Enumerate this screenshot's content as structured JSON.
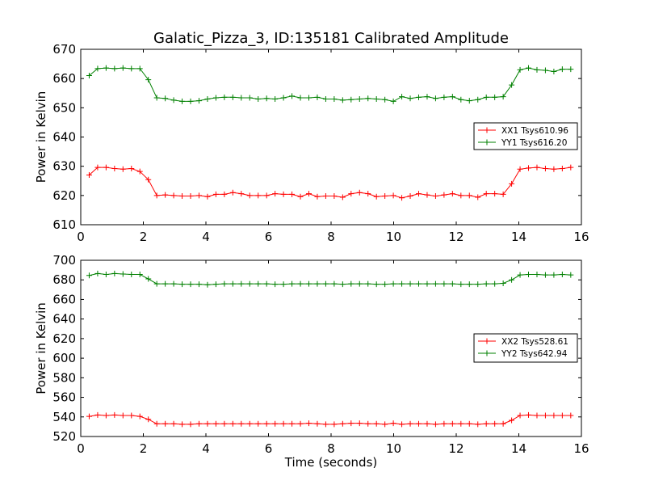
{
  "figure": {
    "title": "Galatic_Pizza_3, ID:135181 Calibrated Amplitude"
  },
  "chart_data": [
    {
      "type": "line",
      "title": "Galatic_Pizza_3, ID:135181 Calibrated Amplitude",
      "xlabel": "",
      "ylabel": "Power in Kelvin",
      "xlim": [
        0,
        16
      ],
      "ylim": [
        610,
        670
      ],
      "xticks": [
        0,
        2,
        4,
        6,
        8,
        10,
        12,
        14,
        16
      ],
      "yticks": [
        610,
        620,
        630,
        640,
        650,
        660,
        670
      ],
      "grid": false,
      "legend": "center-right",
      "x": [
        0.27,
        0.54,
        0.81,
        1.08,
        1.35,
        1.62,
        1.89,
        2.16,
        2.43,
        2.7,
        2.97,
        3.24,
        3.51,
        3.78,
        4.05,
        4.32,
        4.59,
        4.86,
        5.13,
        5.4,
        5.67,
        5.94,
        6.21,
        6.48,
        6.75,
        7.02,
        7.29,
        7.56,
        7.83,
        8.1,
        8.37,
        8.64,
        8.91,
        9.18,
        9.45,
        9.72,
        9.99,
        10.26,
        10.53,
        10.8,
        11.07,
        11.34,
        11.61,
        11.88,
        12.15,
        12.42,
        12.69,
        12.96,
        13.23,
        13.5,
        13.77,
        14.04,
        14.31,
        14.58,
        14.85,
        15.12,
        15.39,
        15.66
      ],
      "series": [
        {
          "name": "XX1 Tsys610.96",
          "color": "#ff0000",
          "values": [
            627.0,
            629.6,
            629.6,
            629.2,
            629.0,
            629.2,
            628.2,
            625.4,
            620.0,
            620.2,
            620.0,
            619.8,
            619.8,
            620.0,
            619.6,
            620.4,
            620.4,
            621.0,
            620.6,
            620.0,
            620.0,
            620.0,
            620.6,
            620.4,
            620.4,
            619.6,
            620.6,
            619.6,
            619.8,
            619.8,
            619.4,
            620.6,
            621.0,
            620.6,
            619.6,
            619.8,
            620.0,
            619.2,
            619.8,
            620.6,
            620.2,
            619.8,
            620.2,
            620.6,
            620.0,
            620.0,
            619.4,
            620.6,
            620.6,
            620.4,
            624.0,
            629.0,
            629.4,
            629.6,
            629.2,
            629.0,
            629.2,
            629.6
          ]
        },
        {
          "name": "YY1 Tsys616.20",
          "color": "#008000",
          "values": [
            661.0,
            663.4,
            663.6,
            663.4,
            663.6,
            663.4,
            663.4,
            659.6,
            653.4,
            653.2,
            652.6,
            652.2,
            652.2,
            652.4,
            653.0,
            653.4,
            653.6,
            653.6,
            653.4,
            653.4,
            653.0,
            653.2,
            653.0,
            653.4,
            654.0,
            653.4,
            653.4,
            653.6,
            653.0,
            653.0,
            652.6,
            652.8,
            653.0,
            653.2,
            653.0,
            652.8,
            652.2,
            653.8,
            653.2,
            653.6,
            653.8,
            653.2,
            653.6,
            653.8,
            652.8,
            652.4,
            652.8,
            653.6,
            653.6,
            653.8,
            657.8,
            663.0,
            663.6,
            663.0,
            662.8,
            662.4,
            663.2,
            663.2
          ]
        }
      ]
    },
    {
      "type": "line",
      "title": "",
      "xlabel": "Time (seconds)",
      "ylabel": "Power in Kelvin",
      "xlim": [
        0,
        16
      ],
      "ylim": [
        520,
        700
      ],
      "xticks": [
        0,
        2,
        4,
        6,
        8,
        10,
        12,
        14,
        16
      ],
      "yticks": [
        520,
        540,
        560,
        580,
        600,
        620,
        640,
        660,
        680,
        700
      ],
      "grid": false,
      "legend": "center-right",
      "x": [
        0.27,
        0.54,
        0.81,
        1.08,
        1.35,
        1.62,
        1.89,
        2.16,
        2.43,
        2.7,
        2.97,
        3.24,
        3.51,
        3.78,
        4.05,
        4.32,
        4.59,
        4.86,
        5.13,
        5.4,
        5.67,
        5.94,
        6.21,
        6.48,
        6.75,
        7.02,
        7.29,
        7.56,
        7.83,
        8.1,
        8.37,
        8.64,
        8.91,
        9.18,
        9.45,
        9.72,
        9.99,
        10.26,
        10.53,
        10.8,
        11.07,
        11.34,
        11.61,
        11.88,
        12.15,
        12.42,
        12.69,
        12.96,
        13.23,
        13.5,
        13.77,
        14.04,
        14.31,
        14.58,
        14.85,
        15.12,
        15.39,
        15.66
      ],
      "series": [
        {
          "name": "XX2 Tsys528.61",
          "color": "#ff0000",
          "values": [
            540.5,
            542.0,
            541.5,
            542.0,
            541.5,
            541.5,
            540.5,
            537.5,
            533.0,
            533.0,
            533.0,
            532.5,
            532.5,
            533.0,
            533.0,
            533.0,
            533.0,
            533.0,
            533.0,
            533.0,
            533.0,
            533.0,
            533.0,
            533.0,
            533.0,
            533.0,
            533.5,
            533.0,
            532.5,
            532.5,
            533.0,
            533.5,
            533.5,
            533.0,
            533.0,
            532.5,
            533.5,
            532.5,
            533.0,
            533.0,
            533.0,
            532.5,
            533.0,
            533.0,
            533.0,
            533.0,
            532.5,
            533.0,
            533.0,
            533.0,
            536.5,
            541.5,
            542.0,
            541.5,
            541.5,
            541.5,
            541.5,
            541.5
          ]
        },
        {
          "name": "YY2 Tsys642.94",
          "color": "#008000",
          "values": [
            684.5,
            686.5,
            685.5,
            686.5,
            686.0,
            685.5,
            685.5,
            681.0,
            676.0,
            676.0,
            676.0,
            675.5,
            675.5,
            675.5,
            675.0,
            675.5,
            676.0,
            676.0,
            676.0,
            676.0,
            676.0,
            676.0,
            675.5,
            675.5,
            676.0,
            676.0,
            676.0,
            676.0,
            676.0,
            676.0,
            675.5,
            676.0,
            676.0,
            676.0,
            675.5,
            675.5,
            676.0,
            676.0,
            676.0,
            676.0,
            676.0,
            676.0,
            676.0,
            676.0,
            675.5,
            675.5,
            675.5,
            676.0,
            676.0,
            676.5,
            680.0,
            685.0,
            685.5,
            685.5,
            685.0,
            685.0,
            685.5,
            685.0
          ]
        }
      ]
    }
  ]
}
